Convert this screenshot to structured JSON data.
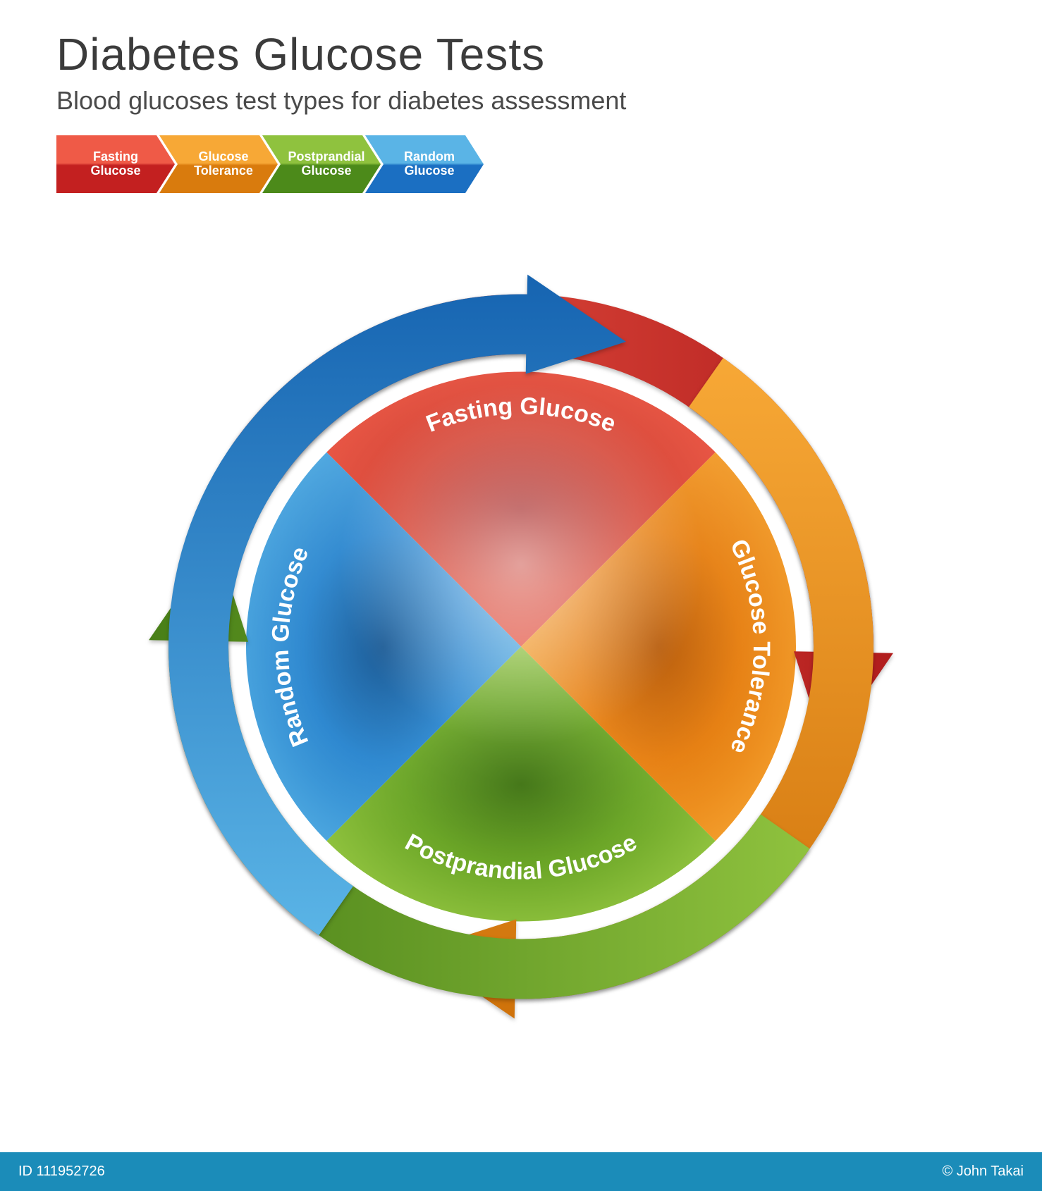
{
  "title": "Diabetes Glucose Tests",
  "subtitle": "Blood glucoses test types for diabetes assessment",
  "title_fontsize": 64,
  "title_color": "#3b3b3b",
  "subtitle_fontsize": 36,
  "subtitle_color": "#4a4a4a",
  "background_color": "#ffffff",
  "legend": {
    "height": 82,
    "item_width": 168,
    "items": [
      {
        "label_l1": "Fasting",
        "label_l2": "Glucose",
        "light": "#ef5a47",
        "dark": "#c32020"
      },
      {
        "label_l1": "Glucose",
        "label_l2": "Tolerance",
        "light": "#f7a836",
        "dark": "#d97b0d"
      },
      {
        "label_l1": "Postprandial",
        "label_l2": "Glucose",
        "light": "#8fc23e",
        "dark": "#4c8a1a"
      },
      {
        "label_l1": "Random",
        "label_l2": "Glucose",
        "light": "#5ab4e6",
        "dark": "#1b6fc2"
      }
    ],
    "label_fontsize": 18,
    "label_color": "#ffffff"
  },
  "wheel": {
    "type": "circular-quadrant-infographic",
    "diameter": 960,
    "inner_radius": 390,
    "outer_arrow_inner_r": 415,
    "outer_arrow_outer_r": 500,
    "segments": [
      {
        "label": "Fasting Glucose",
        "angle_center_deg": -90,
        "light": "#f05a47",
        "mid": "#d23a2a",
        "dark": "#9e1412",
        "arrow_light": "#ef5a47",
        "arrow_dark": "#b11d1d",
        "label_rotate": 0,
        "label_path": "top"
      },
      {
        "label": "Glucose Tolerance",
        "angle_center_deg": 0,
        "light": "#f7a836",
        "mid": "#e67e0f",
        "dark": "#b55500",
        "arrow_light": "#f7a836",
        "arrow_dark": "#cf720a",
        "label_rotate": 90,
        "label_path": "right"
      },
      {
        "label": "Postprandial Glucose",
        "angle_center_deg": 90,
        "light": "#9fce48",
        "mid": "#6aa526",
        "dark": "#3f7312",
        "arrow_light": "#8fc23e",
        "arrow_dark": "#487f17",
        "label_rotate": 0,
        "label_path": "bottom"
      },
      {
        "label": "Random Glucose",
        "angle_center_deg": 180,
        "light": "#5ab4e6",
        "mid": "#2a86cf",
        "dark": "#0f5290",
        "arrow_light": "#5ab4e6",
        "arrow_dark": "#1664b1",
        "label_rotate": -90,
        "label_path": "left"
      }
    ],
    "label_fontsize": 34,
    "label_color": "#ffffff",
    "label_weight": 600
  },
  "footer": {
    "bg_color": "#1b8cb9",
    "text_color": "#ffffff",
    "id_text": "ID 111952726",
    "credit_text": "© John Takai"
  }
}
